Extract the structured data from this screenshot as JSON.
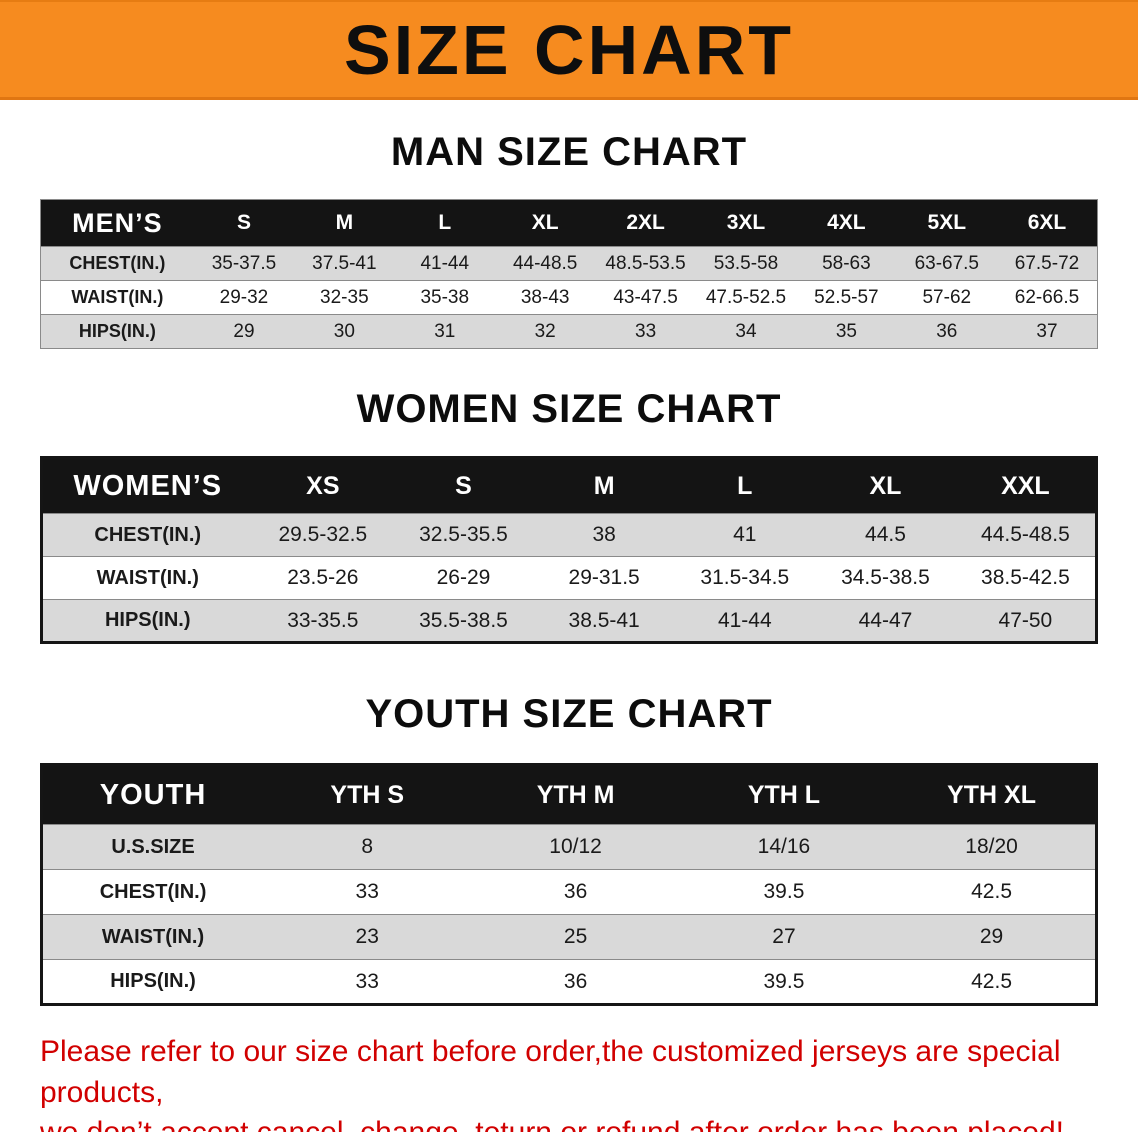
{
  "banner": {
    "title": "SIZE CHART"
  },
  "colors": {
    "banner_bg": "#f68b1f",
    "table_header_bg": "#141414",
    "row_alt_bg": "#d9d9d9",
    "disclaimer_red": "#d10000"
  },
  "men": {
    "heading": "MAN SIZE CHART",
    "header_label": "MEN’S",
    "columns": [
      "S",
      "M",
      "L",
      "XL",
      "2XL",
      "3XL",
      "4XL",
      "5XL",
      "6XL"
    ],
    "rows": [
      {
        "label": "CHEST(IN.)",
        "values": [
          "35-37.5",
          "37.5-41",
          "41-44",
          "44-48.5",
          "48.5-53.5",
          "53.5-58",
          "58-63",
          "63-67.5",
          "67.5-72"
        ]
      },
      {
        "label": "WAIST(IN.)",
        "values": [
          "29-32",
          "32-35",
          "35-38",
          "38-43",
          "43-47.5",
          "47.5-52.5",
          "52.5-57",
          "57-62",
          "62-66.5"
        ]
      },
      {
        "label": "HIPS(IN.)",
        "values": [
          "29",
          "30",
          "31",
          "32",
          "33",
          "34",
          "35",
          "36",
          "37"
        ]
      }
    ]
  },
  "women": {
    "heading": "WOMEN SIZE CHART",
    "header_label": "WOMEN’S",
    "columns": [
      "XS",
      "S",
      "M",
      "L",
      "XL",
      "XXL"
    ],
    "rows": [
      {
        "label": "CHEST(IN.)",
        "values": [
          "29.5-32.5",
          "32.5-35.5",
          "38",
          "41",
          "44.5",
          "44.5-48.5"
        ]
      },
      {
        "label": "WAIST(IN.)",
        "values": [
          "23.5-26",
          "26-29",
          "29-31.5",
          "31.5-34.5",
          "34.5-38.5",
          "38.5-42.5"
        ]
      },
      {
        "label": "HIPS(IN.)",
        "values": [
          "33-35.5",
          "35.5-38.5",
          "38.5-41",
          "41-44",
          "44-47",
          "47-50"
        ]
      }
    ]
  },
  "youth": {
    "heading": "YOUTH SIZE CHART",
    "header_label": "YOUTH",
    "columns": [
      "YTH S",
      "YTH M",
      "YTH L",
      "YTH XL"
    ],
    "rows": [
      {
        "label": "U.S.SIZE",
        "values": [
          "8",
          "10/12",
          "14/16",
          "18/20"
        ]
      },
      {
        "label": "CHEST(IN.)",
        "values": [
          "33",
          "36",
          "39.5",
          "42.5"
        ]
      },
      {
        "label": "WAIST(IN.)",
        "values": [
          "23",
          "25",
          "27",
          "29"
        ]
      },
      {
        "label": "HIPS(IN.)",
        "values": [
          "33",
          "36",
          "39.5",
          "42.5"
        ]
      }
    ]
  },
  "disclaimer": {
    "line1": "Please refer to our size chart before order,the customized jerseys are special products,",
    "line2": "we don’t accept cancel, change, teturn or refund after order has been placed!"
  }
}
